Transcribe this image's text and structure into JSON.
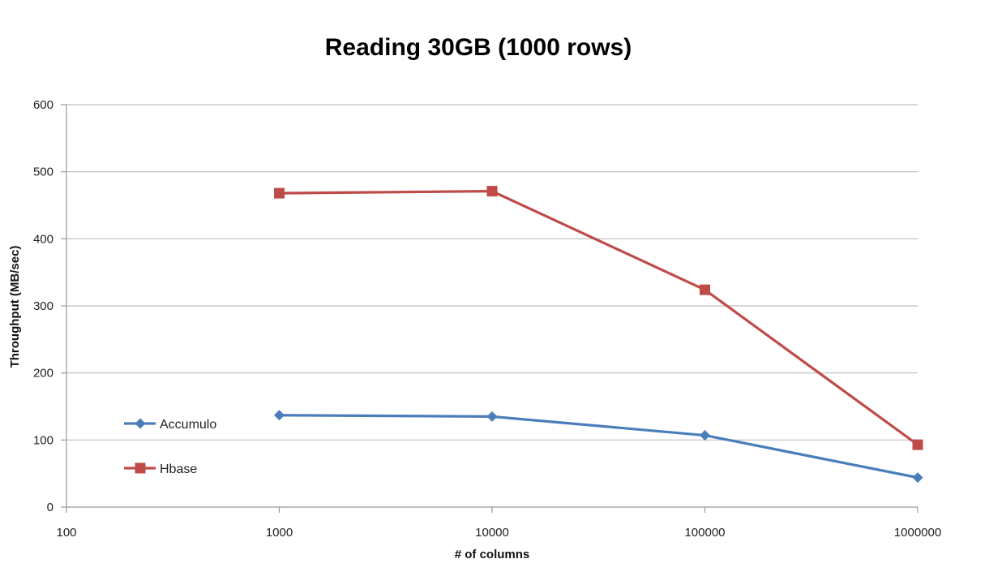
{
  "chart_data": {
    "type": "line",
    "title": "Reading 30GB (1000 rows)",
    "xlabel": "# of columns",
    "ylabel": "Throughput (MB/sec)",
    "x_scale": "log",
    "x_ticks": [
      "100",
      "1000",
      "10000",
      "100000",
      "1000000"
    ],
    "x_tick_values": [
      100,
      1000,
      10000,
      100000,
      1000000
    ],
    "xlim": [
      100,
      1000000
    ],
    "y_ticks": [
      "0",
      "100",
      "200",
      "300",
      "400",
      "500",
      "600"
    ],
    "y_tick_values": [
      0,
      100,
      200,
      300,
      400,
      500,
      600
    ],
    "ylim": [
      0,
      600
    ],
    "grid": "horizontal",
    "legend_position": "left",
    "x": [
      1000,
      10000,
      100000,
      1000000
    ],
    "series": [
      {
        "name": "Accumulo",
        "values": [
          137,
          135,
          107,
          44
        ],
        "color": "#4a7ebb",
        "marker": "diamond"
      },
      {
        "name": "Hbase",
        "values": [
          468,
          471,
          324,
          93
        ],
        "color": "#be4b48",
        "marker": "square"
      }
    ]
  }
}
